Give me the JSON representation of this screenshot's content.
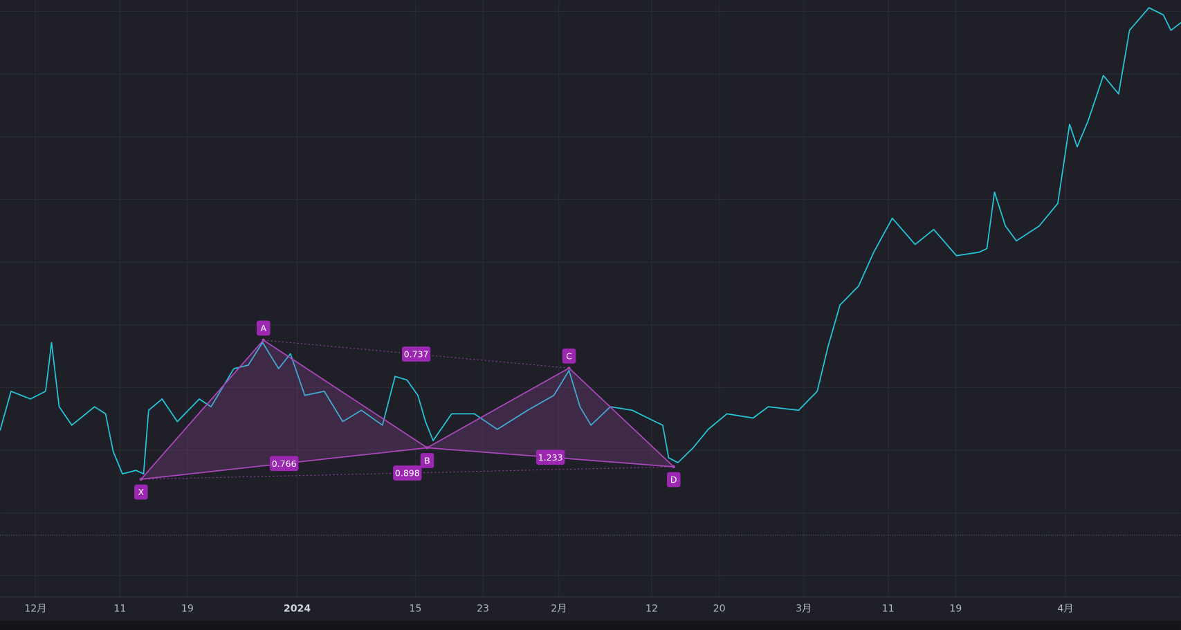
{
  "chart_data": {
    "type": "line",
    "x": [
      -4.2,
      -2.9,
      -0.6,
      1.2,
      1.9,
      2.8,
      4.3,
      7.0,
      8.3,
      9.2,
      10.3,
      11.9,
      12.8,
      13.4,
      15.0,
      16.8,
      19.4,
      20.8,
      23.5,
      25.2,
      26.9,
      28.8,
      30.2,
      31.9,
      34.2,
      36.4,
      38.6,
      41.1,
      42.6,
      44.0,
      45.3,
      46.2,
      47.1,
      49.3,
      52.0,
      54.7,
      58.3,
      61.4,
      63.2,
      64.5,
      65.8,
      68.1,
      70.7,
      73.4,
      74.3,
      75.0,
      76.1,
      77.9,
      79.7,
      81.9,
      85.0,
      86.8,
      90.4,
      92.6,
      93.9,
      95.3,
      97.5,
      99.3,
      101.5,
      104.2,
      106.4,
      109.1,
      111.8,
      112.7,
      113.6,
      114.9,
      116.2,
      118.9,
      121.1,
      122.5,
      123.4,
      124.7,
      126.5,
      128.3,
      129.6,
      131.9,
      133.6,
      134.5,
      135.7
    ],
    "series": [
      {
        "color": "#26c6da",
        "values": [
          27.6,
          34.2,
          32.9,
          34.2,
          42.4,
          31.6,
          28.5,
          31.6,
          30.4,
          24.1,
          20.3,
          20.9,
          20.3,
          31.0,
          32.9,
          29.1,
          32.9,
          31.6,
          38.0,
          38.6,
          42.4,
          38.0,
          40.5,
          33.5,
          34.2,
          29.1,
          31.0,
          28.5,
          36.7,
          36.1,
          33.5,
          29.1,
          25.9,
          30.4,
          30.4,
          27.8,
          31.0,
          33.5,
          37.7,
          31.6,
          28.5,
          31.6,
          31.0,
          29.1,
          28.5,
          23.0,
          22.2,
          24.7,
          27.8,
          30.4,
          29.7,
          31.6,
          31.0,
          34.2,
          41.8,
          48.7,
          51.9,
          57.6,
          63.3,
          58.9,
          61.4,
          57.0,
          57.6,
          58.2,
          67.7,
          62.0,
          59.5,
          62.0,
          65.8,
          79.1,
          75.3,
          79.7,
          87.3,
          84.2,
          94.9,
          98.7,
          97.5,
          94.9,
          96.2
        ]
      }
    ],
    "xlim": [
      -4.19,
      135.68
    ],
    "ylim": [
      0,
      100
    ],
    "xticks": [
      {
        "value": 0,
        "label": "12月"
      },
      {
        "value": 10,
        "label": "11"
      },
      {
        "value": 18,
        "label": "19"
      },
      {
        "value": 31,
        "label": "2024"
      },
      {
        "value": 45,
        "label": "15"
      },
      {
        "value": 53,
        "label": "23"
      },
      {
        "value": 62,
        "label": "2月"
      },
      {
        "value": 73,
        "label": "12"
      },
      {
        "value": 81,
        "label": "20"
      },
      {
        "value": 91,
        "label": "3月"
      },
      {
        "value": 101,
        "label": "11"
      },
      {
        "value": 109,
        "label": "19"
      },
      {
        "value": 122,
        "label": "4月"
      }
    ],
    "grid": true,
    "price_line": 10.0,
    "pattern": {
      "color": "#ab47bc",
      "points": [
        {
          "label": "X",
          "x": 12.5,
          "y": 19.4
        },
        {
          "label": "A",
          "x": 27.0,
          "y": 42.8
        },
        {
          "label": "B",
          "x": 46.4,
          "y": 24.7
        },
        {
          "label": "C",
          "x": 63.2,
          "y": 38.1
        },
        {
          "label": "D",
          "x": 75.6,
          "y": 21.5
        }
      ],
      "ratios": [
        0.737,
        0.766,
        0.898,
        1.233
      ]
    }
  }
}
